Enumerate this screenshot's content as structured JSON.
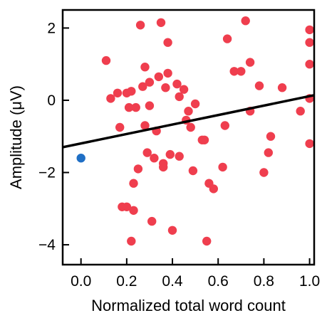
{
  "chart_data": {
    "type": "scatter",
    "title": "",
    "xlabel": "Normalized total word count",
    "ylabel": "Amplitude (μV)",
    "xlim": [
      -0.08,
      1.02
    ],
    "ylim": [
      -4.55,
      2.5
    ],
    "xticks": [
      "0.0",
      "0.2",
      "0.4",
      "0.6",
      "0.8",
      "1.0"
    ],
    "xtick_values": [
      0.0,
      0.2,
      0.4,
      0.6,
      0.8,
      1.0
    ],
    "yticks": [
      "2",
      "0",
      "−2",
      "−4"
    ],
    "ytick_values": [
      2,
      0,
      -2,
      -4
    ],
    "grid": false,
    "legend": "none",
    "series": [
      {
        "color": "#ef3e4e",
        "points": [
          [
            0.11,
            1.1
          ],
          [
            0.13,
            0.05
          ],
          [
            0.16,
            0.2
          ],
          [
            0.17,
            -0.75
          ],
          [
            0.18,
            -2.95
          ],
          [
            0.2,
            -2.95
          ],
          [
            0.2,
            0.2
          ],
          [
            0.21,
            -0.2
          ],
          [
            0.22,
            -3.9
          ],
          [
            0.22,
            0.25
          ],
          [
            0.23,
            -2.3
          ],
          [
            0.23,
            -3.05
          ],
          [
            0.24,
            -0.2
          ],
          [
            0.26,
            2.08
          ],
          [
            0.25,
            -1.9
          ],
          [
            0.27,
            0.38
          ],
          [
            0.28,
            0.92
          ],
          [
            0.28,
            -0.7
          ],
          [
            0.29,
            -1.45
          ],
          [
            0.3,
            -0.15
          ],
          [
            0.3,
            0.5
          ],
          [
            0.31,
            -3.35
          ],
          [
            0.32,
            -1.6
          ],
          [
            0.33,
            -0.85
          ],
          [
            0.34,
            0.65
          ],
          [
            0.35,
            2.15
          ],
          [
            0.36,
            -1.75
          ],
          [
            0.36,
            -1.85
          ],
          [
            0.37,
            0.35
          ],
          [
            0.38,
            0.75
          ],
          [
            0.38,
            1.6
          ],
          [
            0.39,
            -1.5
          ],
          [
            0.4,
            -3.6
          ],
          [
            0.42,
            0.45
          ],
          [
            0.43,
            -1.55
          ],
          [
            0.43,
            0.1
          ],
          [
            0.45,
            0.3
          ],
          [
            0.46,
            -0.55
          ],
          [
            0.47,
            -0.3
          ],
          [
            0.48,
            -0.75
          ],
          [
            0.49,
            -1.95
          ],
          [
            0.5,
            -0.1
          ],
          [
            0.53,
            -1.1
          ],
          [
            0.54,
            -1.1
          ],
          [
            0.55,
            -3.9
          ],
          [
            0.56,
            -2.3
          ],
          [
            0.58,
            -2.45
          ],
          [
            0.62,
            -1.85
          ],
          [
            0.63,
            -0.7
          ],
          [
            0.64,
            1.7
          ],
          [
            0.67,
            0.8
          ],
          [
            0.7,
            0.8
          ],
          [
            0.72,
            2.2
          ],
          [
            0.74,
            1.05
          ],
          [
            0.74,
            -0.3
          ],
          [
            0.78,
            0.4
          ],
          [
            0.8,
            -2.0
          ],
          [
            0.82,
            -1.45
          ],
          [
            0.83,
            -1.0
          ],
          [
            0.88,
            0.35
          ],
          [
            0.96,
            -0.3
          ],
          [
            1.0,
            1.95
          ],
          [
            1.0,
            1.6
          ],
          [
            1.0,
            1.0
          ],
          [
            1.0,
            0.05
          ],
          [
            1.0,
            -1.2
          ]
        ]
      },
      {
        "color": "#1f6fc5",
        "points": [
          [
            0.0,
            -1.6
          ]
        ]
      }
    ],
    "fit_line": {
      "color": "#000000",
      "x": [
        -0.08,
        1.02
      ],
      "y": [
        -1.3,
        0.14
      ]
    }
  }
}
